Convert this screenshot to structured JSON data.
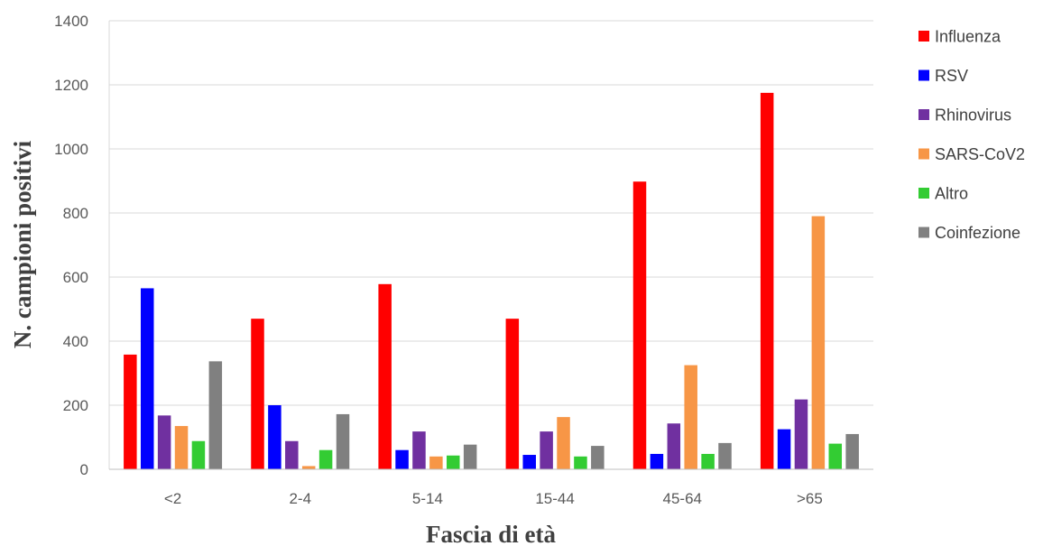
{
  "chart_data": {
    "type": "bar",
    "title": "",
    "xlabel": "Fascia di età",
    "ylabel": "N. campioni positivi",
    "ylim": [
      0,
      1400
    ],
    "yticks": [
      "0",
      "200",
      "400",
      "600",
      "800",
      "1000",
      "1200",
      "1400"
    ],
    "grid": true,
    "legend_position": "right",
    "categories": [
      "<2",
      "2-4",
      "5-14",
      "15-44",
      "45-64",
      ">65"
    ],
    "series": [
      {
        "name": "Influenza",
        "color": "#ff0000",
        "values": [
          358,
          470,
          578,
          470,
          898,
          1175
        ]
      },
      {
        "name": "RSV",
        "color": "#0000ff",
        "values": [
          565,
          200,
          60,
          45,
          48,
          125
        ]
      },
      {
        "name": "Rhinovirus",
        "color": "#7030a0",
        "values": [
          168,
          88,
          118,
          118,
          143,
          218
        ]
      },
      {
        "name": "SARS-CoV2",
        "color": "#f79646",
        "values": [
          135,
          10,
          40,
          163,
          325,
          790
        ]
      },
      {
        "name": "Altro",
        "color": "#33cc33",
        "values": [
          88,
          60,
          43,
          40,
          48,
          80
        ]
      },
      {
        "name": "Coinfezione",
        "color": "#808080",
        "values": [
          337,
          172,
          77,
          73,
          82,
          110
        ]
      }
    ]
  }
}
